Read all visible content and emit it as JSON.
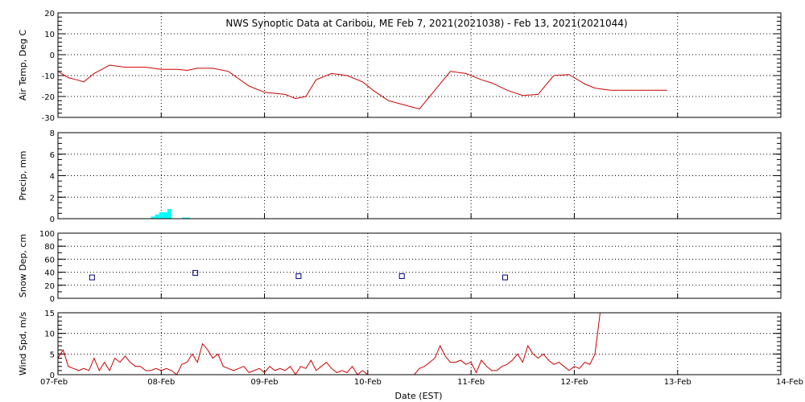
{
  "chart_data": {
    "type": "line",
    "title": "NWS Synoptic Data at Caribou, ME   Feb  7, 2021(2021038) - Feb 13, 2021(2021044)",
    "xlabel": "Date (EST)",
    "x_range_days": [
      0,
      7
    ],
    "x_ticks": [
      "07-Feb",
      "08-Feb",
      "09-Feb",
      "10-Feb",
      "11-Feb",
      "12-Feb",
      "13-Feb",
      "14-Feb"
    ],
    "grid": true,
    "colors": {
      "line": "#cc0000",
      "precip": "#00ffff",
      "snow": "#000080"
    },
    "panels": [
      {
        "id": "air-temp",
        "type": "line",
        "ylabel": "Air Temp, Deg C",
        "ylim": [
          -30,
          20
        ],
        "y_ticks": [
          20,
          10,
          0,
          -10,
          -20,
          -30
        ],
        "minor_step": 2,
        "series": [
          {
            "x": [
              0.0,
              0.1,
              0.18,
              0.25,
              0.35,
              0.5,
              0.65,
              0.85,
              1.0,
              1.15,
              1.25,
              1.35,
              1.5,
              1.65,
              1.85,
              2.0,
              2.1,
              2.2,
              2.3,
              2.4,
              2.5,
              2.65,
              2.8,
              2.95,
              3.05,
              3.2,
              3.35,
              3.5,
              3.65,
              3.8,
              3.95,
              4.1,
              4.2,
              4.35,
              4.5,
              4.65,
              4.8,
              4.95,
              5.1,
              5.2,
              5.35,
              5.5,
              5.7,
              5.9
            ],
            "y": [
              -8,
              -11,
              -12,
              -13,
              -9,
              -5,
              -6,
              -6,
              -7,
              -7,
              -7.5,
              -6.5,
              -6.5,
              -8,
              -15,
              -18,
              -18.5,
              -19,
              -21,
              -20,
              -12,
              -9,
              -10,
              -13,
              -17,
              -22,
              -24,
              -26,
              -17,
              -8,
              -9,
              -12,
              -13.5,
              -17,
              -19.5,
              -19,
              -10,
              -9.5,
              -14,
              -16,
              -17,
              -17,
              -17,
              -17
            ]
          }
        ]
      },
      {
        "id": "precip",
        "type": "bar",
        "ylabel": "Precip, mm",
        "ylim": [
          0,
          8
        ],
        "y_ticks": [
          8,
          6,
          4,
          2,
          0
        ],
        "minor_step": 0.5,
        "bar_width_days": 0.04,
        "series": [
          {
            "x": [
              0.92,
              0.96,
              1.0,
              1.04,
              1.08,
              1.22,
              1.26
            ],
            "y": [
              0.2,
              0.4,
              0.6,
              0.6,
              0.9,
              0.1,
              0.1
            ]
          }
        ]
      },
      {
        "id": "snow-depth",
        "type": "scatter",
        "ylabel": "Snow Dep, cm",
        "ylim": [
          0,
          100
        ],
        "y_ticks": [
          100,
          80,
          60,
          40,
          20,
          0
        ],
        "minor_step": 10,
        "series": [
          {
            "x": [
              0.33,
              1.33,
              2.33,
              3.33,
              4.33
            ],
            "y": [
              32,
              39,
              34,
              34,
              32
            ]
          }
        ]
      },
      {
        "id": "wind-speed",
        "type": "line",
        "ylabel": "Wind Spd, m/s",
        "ylim": [
          0,
          15
        ],
        "y_ticks": [
          15,
          10,
          5,
          0
        ],
        "minor_step": 1,
        "series": [
          {
            "x": [
              0.0,
              0.05,
              0.1,
              0.15,
              0.2,
              0.25,
              0.3,
              0.35,
              0.4,
              0.45,
              0.5,
              0.55,
              0.6,
              0.65,
              0.7,
              0.75,
              0.8,
              0.85,
              0.9,
              0.95,
              1.0,
              1.05,
              1.1,
              1.15,
              1.2,
              1.25,
              1.3,
              1.35,
              1.4,
              1.45,
              1.5,
              1.55,
              1.6,
              1.65,
              1.7,
              1.75,
              1.8,
              1.85,
              1.9,
              1.95,
              2.0,
              2.05,
              2.1,
              2.15,
              2.2,
              2.25,
              2.3,
              2.35,
              2.4,
              2.45,
              2.5,
              2.55,
              2.6,
              2.65,
              2.7,
              2.75,
              2.8,
              2.85,
              2.9,
              2.95,
              3.0
            ],
            "y": [
              4,
              6,
              2,
              1.5,
              1,
              1.5,
              1,
              4,
              1,
              3,
              1,
              4,
              3,
              4.5,
              3,
              2,
              2,
              1,
              1,
              1.5,
              1,
              1.5,
              1,
              0,
              2.5,
              3,
              5,
              3,
              7.5,
              6,
              4,
              5,
              2,
              1.5,
              1,
              1.5,
              2,
              0.5,
              1,
              1.5,
              0.5,
              2,
              1,
              1.5,
              1,
              2,
              0,
              2,
              1.5,
              3.5,
              1,
              2,
              3,
              1.5,
              0.5,
              1,
              0.5,
              2,
              0,
              1,
              0
            ]
          },
          {
            "x": [
              3.45,
              3.5,
              3.55,
              3.6,
              3.65,
              3.7,
              3.75,
              3.8,
              3.85,
              3.9,
              3.95,
              4.0,
              4.05,
              4.1,
              4.15,
              4.2,
              4.25,
              4.3,
              4.35,
              4.4,
              4.45,
              4.5,
              4.55,
              4.6,
              4.65,
              4.7,
              4.75,
              4.8,
              4.85,
              4.9,
              4.95,
              5.0,
              5.05,
              5.1,
              5.15,
              5.2,
              5.25,
              5.3
            ],
            "y": [
              0,
              1.5,
              2,
              3,
              4,
              7,
              4.5,
              3,
              3,
              3.5,
              2.5,
              3,
              0.5,
              3.5,
              2,
              1,
              1,
              2,
              2.5,
              3.5,
              5,
              3,
              7,
              5,
              4,
              5,
              3.5,
              2.5,
              3,
              2,
              1,
              2,
              1.5,
              3,
              2.5,
              5,
              15,
              20
            ]
          }
        ]
      }
    ]
  }
}
